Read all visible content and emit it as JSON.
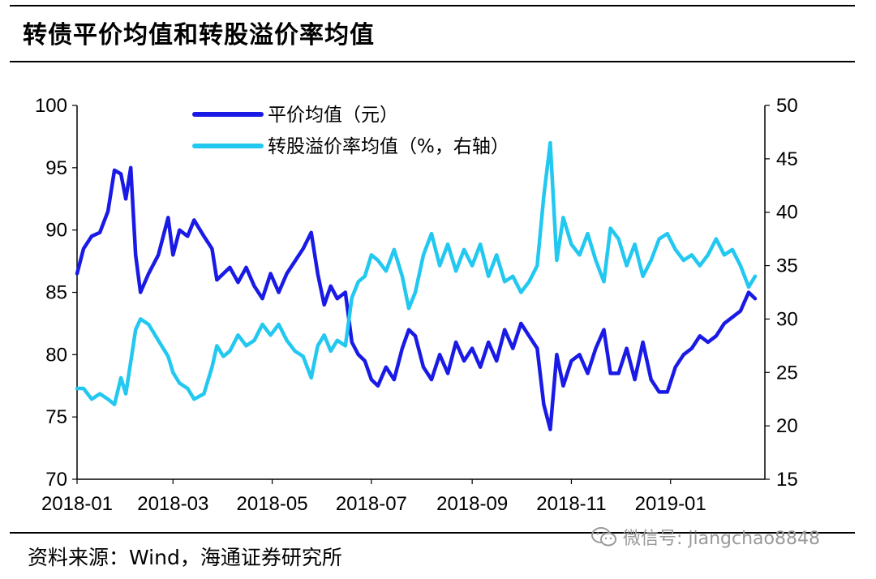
{
  "header": {
    "title": "转债平价均值和转股溢价率均值"
  },
  "footer": {
    "source": "资料来源：Wind，海通证券研究所"
  },
  "watermark": {
    "text": "微信号: jiangchao8848",
    "icon": "wechat-icon"
  },
  "chart_data": {
    "type": "line",
    "title": "转债平价均值和转股溢价率均值",
    "x_tick_labels": [
      "2018-01",
      "2018-03",
      "2018-05",
      "2018-07",
      "2018-09",
      "2018-11",
      "2019-01"
    ],
    "x_range": [
      "2018-01-01",
      "2019-02-28"
    ],
    "left_axis": {
      "ylim": [
        70,
        100
      ],
      "ticks": [
        70,
        75,
        80,
        85,
        90,
        95,
        100
      ]
    },
    "right_axis": {
      "ylim": [
        15,
        50
      ],
      "ticks": [
        15,
        20,
        25,
        30,
        35,
        40,
        45,
        50
      ]
    },
    "grid": false,
    "legend_position": "top-center",
    "series": [
      {
        "name": "平价均值（元）",
        "axis": "left",
        "color": "#1a1ae6",
        "points": [
          [
            "2018-01-01",
            86.5
          ],
          [
            "2018-01-05",
            88.5
          ],
          [
            "2018-01-10",
            89.5
          ],
          [
            "2018-01-15",
            89.8
          ],
          [
            "2018-01-20",
            91.5
          ],
          [
            "2018-01-24",
            94.8
          ],
          [
            "2018-01-28",
            94.5
          ],
          [
            "2018-01-31",
            92.5
          ],
          [
            "2018-02-03",
            95.0
          ],
          [
            "2018-02-06",
            88.0
          ],
          [
            "2018-02-09",
            85.0
          ],
          [
            "2018-02-14",
            86.5
          ],
          [
            "2018-02-20",
            88.0
          ],
          [
            "2018-02-26",
            91.0
          ],
          [
            "2018-03-01",
            88.0
          ],
          [
            "2018-03-05",
            90.0
          ],
          [
            "2018-03-10",
            89.5
          ],
          [
            "2018-03-14",
            90.8
          ],
          [
            "2018-03-20",
            89.5
          ],
          [
            "2018-03-25",
            88.5
          ],
          [
            "2018-03-28",
            86.0
          ],
          [
            "2018-04-01",
            86.5
          ],
          [
            "2018-04-05",
            87.0
          ],
          [
            "2018-04-10",
            85.8
          ],
          [
            "2018-04-15",
            87.0
          ],
          [
            "2018-04-20",
            85.5
          ],
          [
            "2018-04-25",
            84.5
          ],
          [
            "2018-04-30",
            86.5
          ],
          [
            "2018-05-05",
            85.0
          ],
          [
            "2018-05-10",
            86.5
          ],
          [
            "2018-05-15",
            87.5
          ],
          [
            "2018-05-20",
            88.5
          ],
          [
            "2018-05-25",
            89.8
          ],
          [
            "2018-05-29",
            86.5
          ],
          [
            "2018-06-02",
            84.0
          ],
          [
            "2018-06-06",
            85.5
          ],
          [
            "2018-06-10",
            84.5
          ],
          [
            "2018-06-15",
            85.0
          ],
          [
            "2018-06-19",
            81.0
          ],
          [
            "2018-06-23",
            80.0
          ],
          [
            "2018-06-27",
            79.5
          ],
          [
            "2018-07-01",
            78.0
          ],
          [
            "2018-07-05",
            77.5
          ],
          [
            "2018-07-10",
            79.0
          ],
          [
            "2018-07-15",
            78.0
          ],
          [
            "2018-07-20",
            80.5
          ],
          [
            "2018-07-24",
            82.0
          ],
          [
            "2018-07-28",
            81.5
          ],
          [
            "2018-08-02",
            79.0
          ],
          [
            "2018-08-07",
            78.0
          ],
          [
            "2018-08-12",
            80.0
          ],
          [
            "2018-08-17",
            78.5
          ],
          [
            "2018-08-22",
            81.0
          ],
          [
            "2018-08-27",
            79.5
          ],
          [
            "2018-09-01",
            80.5
          ],
          [
            "2018-09-06",
            79.0
          ],
          [
            "2018-09-11",
            81.0
          ],
          [
            "2018-09-16",
            79.5
          ],
          [
            "2018-09-21",
            82.0
          ],
          [
            "2018-09-26",
            80.5
          ],
          [
            "2018-10-01",
            82.5
          ],
          [
            "2018-10-06",
            81.5
          ],
          [
            "2018-10-11",
            80.5
          ],
          [
            "2018-10-15",
            76.0
          ],
          [
            "2018-10-19",
            74.0
          ],
          [
            "2018-10-23",
            80.0
          ],
          [
            "2018-10-27",
            77.5
          ],
          [
            "2018-11-01",
            79.5
          ],
          [
            "2018-11-06",
            80.0
          ],
          [
            "2018-11-11",
            78.5
          ],
          [
            "2018-11-16",
            80.5
          ],
          [
            "2018-11-21",
            82.0
          ],
          [
            "2018-11-25",
            78.5
          ],
          [
            "2018-11-30",
            78.5
          ],
          [
            "2018-12-05",
            80.5
          ],
          [
            "2018-12-10",
            78.0
          ],
          [
            "2018-12-15",
            81.0
          ],
          [
            "2018-12-20",
            78.0
          ],
          [
            "2018-12-25",
            77.0
          ],
          [
            "2018-12-30",
            77.0
          ],
          [
            "2019-01-04",
            79.0
          ],
          [
            "2019-01-09",
            80.0
          ],
          [
            "2019-01-14",
            80.5
          ],
          [
            "2019-01-19",
            81.5
          ],
          [
            "2019-01-24",
            81.0
          ],
          [
            "2019-01-29",
            81.5
          ],
          [
            "2019-02-03",
            82.5
          ],
          [
            "2019-02-08",
            83.0
          ],
          [
            "2019-02-13",
            83.5
          ],
          [
            "2019-02-18",
            85.0
          ],
          [
            "2019-02-22",
            84.5
          ]
        ]
      },
      {
        "name": "转股溢价率均值（%，右轴）",
        "axis": "right",
        "color": "#22c8f0",
        "points": [
          [
            "2018-01-01",
            23.5
          ],
          [
            "2018-01-05",
            23.5
          ],
          [
            "2018-01-10",
            22.5
          ],
          [
            "2018-01-15",
            23.0
          ],
          [
            "2018-01-20",
            22.5
          ],
          [
            "2018-01-24",
            22.0
          ],
          [
            "2018-01-28",
            24.5
          ],
          [
            "2018-01-31",
            23.0
          ],
          [
            "2018-02-03",
            26.0
          ],
          [
            "2018-02-06",
            29.0
          ],
          [
            "2018-02-09",
            30.0
          ],
          [
            "2018-02-14",
            29.5
          ],
          [
            "2018-02-20",
            28.0
          ],
          [
            "2018-02-26",
            26.5
          ],
          [
            "2018-03-01",
            25.0
          ],
          [
            "2018-03-05",
            24.0
          ],
          [
            "2018-03-10",
            23.5
          ],
          [
            "2018-03-14",
            22.5
          ],
          [
            "2018-03-20",
            23.0
          ],
          [
            "2018-03-25",
            25.5
          ],
          [
            "2018-03-28",
            27.5
          ],
          [
            "2018-04-01",
            26.5
          ],
          [
            "2018-04-05",
            27.0
          ],
          [
            "2018-04-10",
            28.5
          ],
          [
            "2018-04-15",
            27.5
          ],
          [
            "2018-04-20",
            28.0
          ],
          [
            "2018-04-25",
            29.5
          ],
          [
            "2018-04-30",
            28.5
          ],
          [
            "2018-05-05",
            29.5
          ],
          [
            "2018-05-10",
            28.0
          ],
          [
            "2018-05-15",
            27.0
          ],
          [
            "2018-05-20",
            26.5
          ],
          [
            "2018-05-25",
            24.5
          ],
          [
            "2018-05-29",
            27.5
          ],
          [
            "2018-06-02",
            28.5
          ],
          [
            "2018-06-06",
            27.0
          ],
          [
            "2018-06-10",
            28.0
          ],
          [
            "2018-06-15",
            27.5
          ],
          [
            "2018-06-19",
            32.0
          ],
          [
            "2018-06-23",
            33.5
          ],
          [
            "2018-06-27",
            34.0
          ],
          [
            "2018-07-01",
            36.0
          ],
          [
            "2018-07-05",
            35.5
          ],
          [
            "2018-07-10",
            34.5
          ],
          [
            "2018-07-15",
            36.5
          ],
          [
            "2018-07-20",
            34.0
          ],
          [
            "2018-07-24",
            31.0
          ],
          [
            "2018-07-28",
            32.5
          ],
          [
            "2018-08-02",
            36.0
          ],
          [
            "2018-08-07",
            38.0
          ],
          [
            "2018-08-12",
            35.0
          ],
          [
            "2018-08-17",
            37.0
          ],
          [
            "2018-08-22",
            34.5
          ],
          [
            "2018-08-27",
            36.5
          ],
          [
            "2018-09-01",
            35.0
          ],
          [
            "2018-09-06",
            37.0
          ],
          [
            "2018-09-11",
            34.0
          ],
          [
            "2018-09-16",
            36.0
          ],
          [
            "2018-09-21",
            33.5
          ],
          [
            "2018-09-26",
            34.0
          ],
          [
            "2018-10-01",
            32.5
          ],
          [
            "2018-10-06",
            33.5
          ],
          [
            "2018-10-11",
            35.0
          ],
          [
            "2018-10-15",
            41.5
          ],
          [
            "2018-10-19",
            46.5
          ],
          [
            "2018-10-23",
            35.5
          ],
          [
            "2018-10-27",
            39.5
          ],
          [
            "2018-11-01",
            37.0
          ],
          [
            "2018-11-06",
            36.0
          ],
          [
            "2018-11-11",
            38.0
          ],
          [
            "2018-11-16",
            35.5
          ],
          [
            "2018-11-21",
            33.5
          ],
          [
            "2018-11-25",
            38.5
          ],
          [
            "2018-11-30",
            37.5
          ],
          [
            "2018-12-05",
            35.0
          ],
          [
            "2018-12-10",
            37.0
          ],
          [
            "2018-12-15",
            34.0
          ],
          [
            "2018-12-20",
            35.5
          ],
          [
            "2018-12-25",
            37.5
          ],
          [
            "2018-12-30",
            38.0
          ],
          [
            "2019-01-04",
            36.5
          ],
          [
            "2019-01-09",
            35.5
          ],
          [
            "2019-01-14",
            36.0
          ],
          [
            "2019-01-19",
            35.0
          ],
          [
            "2019-01-24",
            36.0
          ],
          [
            "2019-01-29",
            37.5
          ],
          [
            "2019-02-03",
            36.0
          ],
          [
            "2019-02-08",
            36.5
          ],
          [
            "2019-02-13",
            35.0
          ],
          [
            "2019-02-18",
            33.0
          ],
          [
            "2019-02-22",
            34.0
          ]
        ]
      }
    ]
  }
}
